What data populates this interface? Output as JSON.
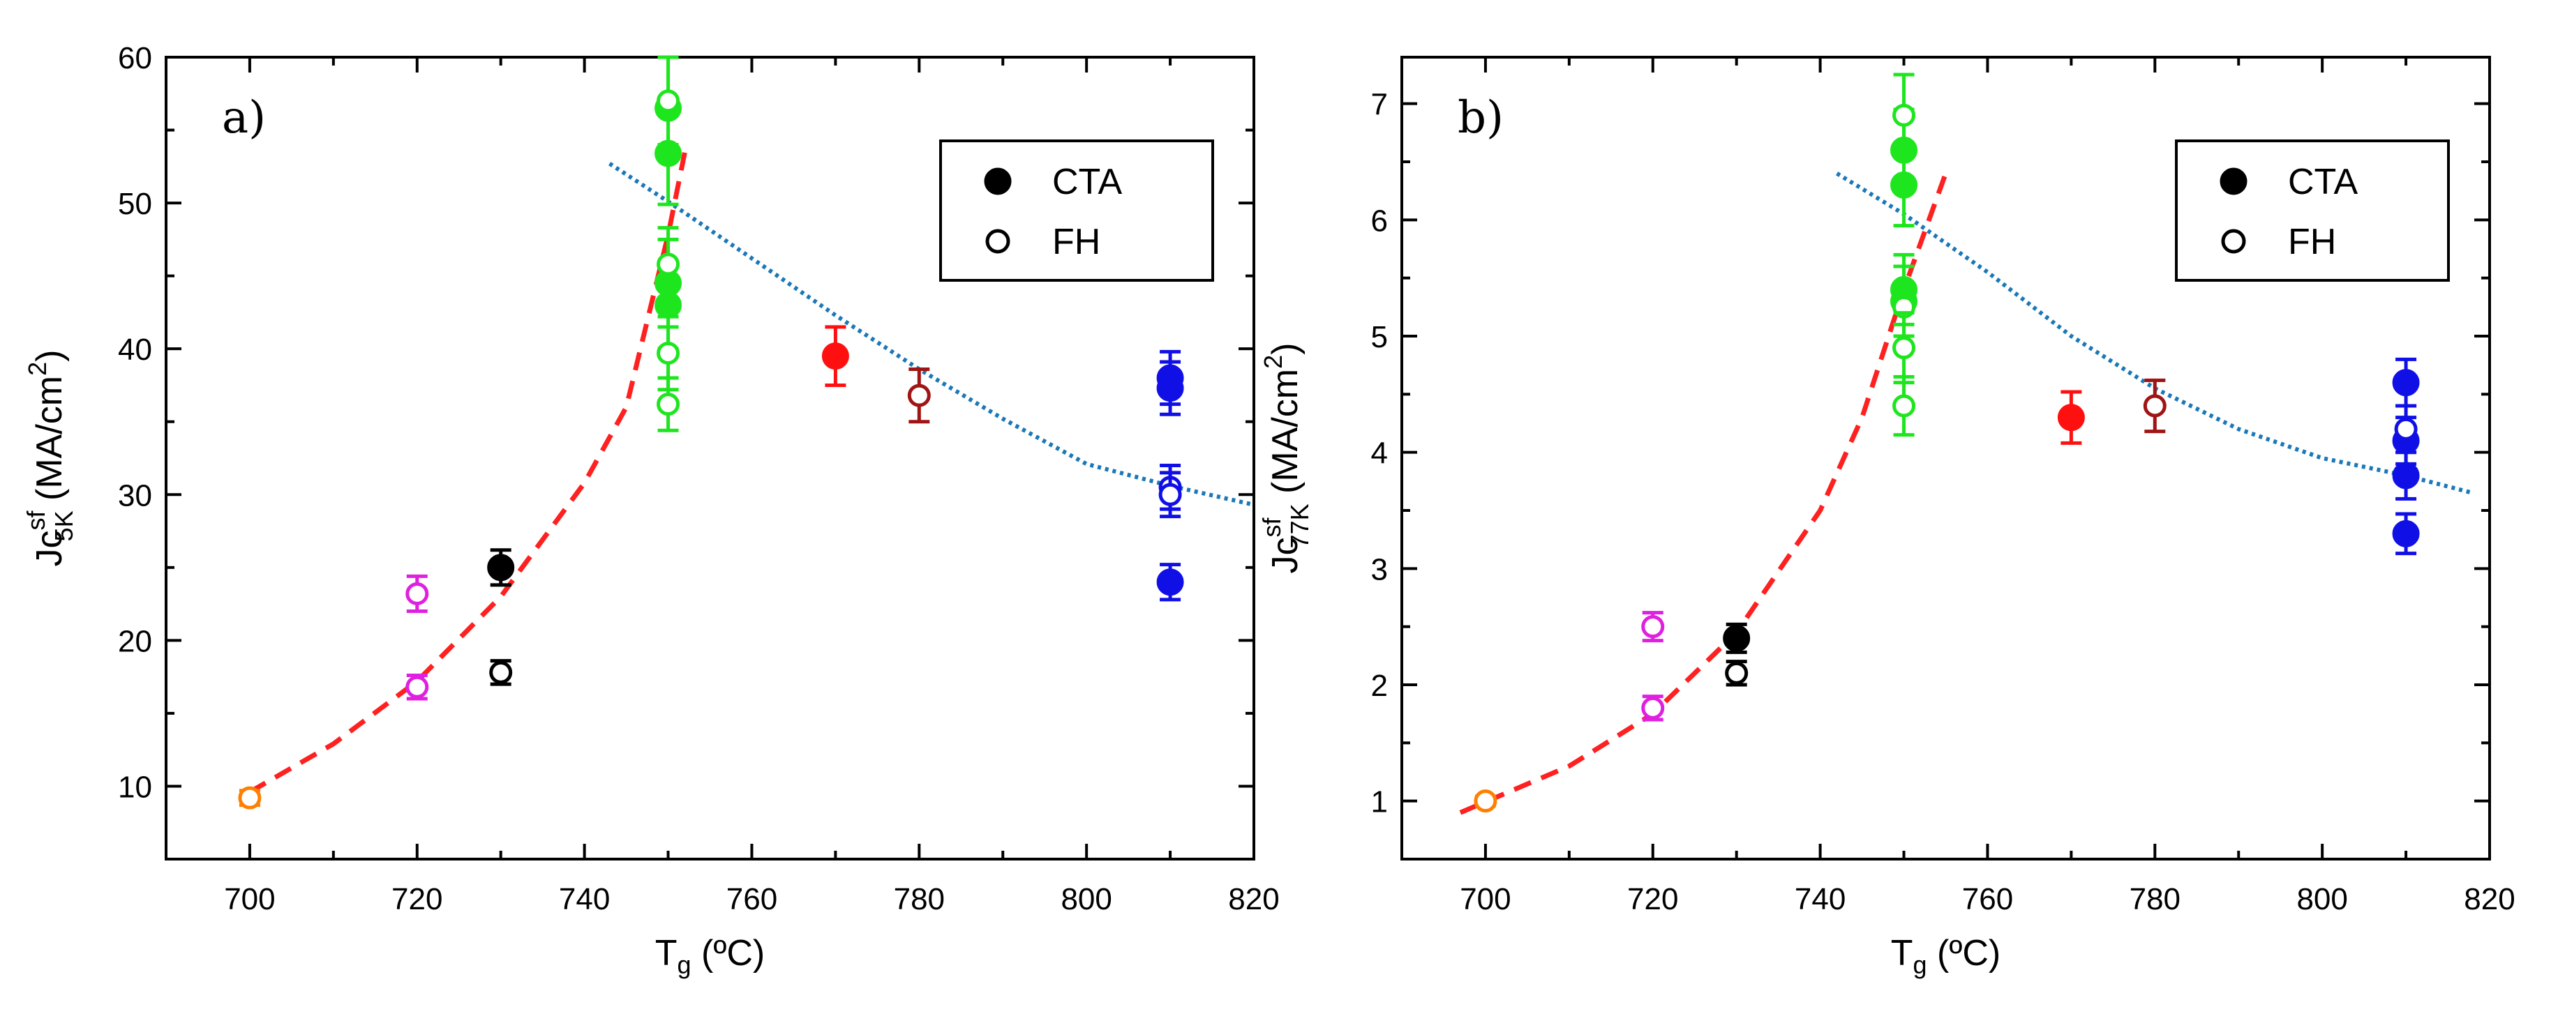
{
  "chart_data": [
    {
      "type": "scatter",
      "panel_label": "a)",
      "xlabel": {
        "main": "T",
        "sub": "g",
        "unit": " (ºC)"
      },
      "ylabel": {
        "main": "Jc",
        "sup": "sf",
        "sub": "5K",
        "unit_a": " (MA/cm",
        "unit_sup": "2",
        "unit_b": ")"
      },
      "xlim": [
        690,
        820
      ],
      "ylim": [
        5,
        60
      ],
      "xticks": [
        700,
        720,
        740,
        760,
        780,
        800,
        820
      ],
      "yticks": [
        10,
        20,
        30,
        40,
        50,
        60
      ],
      "legend": {
        "position": "top-right",
        "entries": [
          {
            "label": "CTA",
            "marker": "filled"
          },
          {
            "label": "FH",
            "marker": "open"
          }
        ]
      },
      "series": [
        {
          "name": "700-open",
          "color": "#ff8000",
          "filled": false,
          "x": 700,
          "points": [
            {
              "y": 9.2,
              "err": 0.5
            }
          ]
        },
        {
          "name": "720-open",
          "color": "#e020e0",
          "filled": false,
          "x": 720,
          "points": [
            {
              "y": 23.2,
              "err": 1.2
            },
            {
              "y": 16.8,
              "err": 0.8
            }
          ]
        },
        {
          "name": "730-filled",
          "color": "#000000",
          "filled": true,
          "x": 730,
          "points": [
            {
              "y": 25.0,
              "err": 1.2
            }
          ]
        },
        {
          "name": "730-open",
          "color": "#000000",
          "filled": false,
          "x": 730,
          "points": [
            {
              "y": 17.8,
              "err": 0.8
            }
          ]
        },
        {
          "name": "750-filled",
          "color": "#1ee61e",
          "filled": true,
          "x": 750,
          "points": [
            {
              "y": 56.5,
              "err": 3.5
            },
            {
              "y": 53.4,
              "err": 3.5
            },
            {
              "y": 44.5,
              "err": 3.0
            },
            {
              "y": 43.0,
              "err": 3.0
            }
          ]
        },
        {
          "name": "750-open",
          "color": "#1ee61e",
          "filled": false,
          "x": 750,
          "points": [
            {
              "y": 57.0,
              "err": 3.0
            },
            {
              "y": 45.8,
              "err": 2.5
            },
            {
              "y": 39.7,
              "err": 2.5
            },
            {
              "y": 36.2,
              "err": 1.8
            }
          ]
        },
        {
          "name": "770-filled",
          "color": "#ff1010",
          "filled": true,
          "x": 770,
          "points": [
            {
              "y": 39.5,
              "err": 2.0
            }
          ]
        },
        {
          "name": "780-open",
          "color": "#a01414",
          "filled": false,
          "x": 780,
          "points": [
            {
              "y": 36.8,
              "err": 1.8
            }
          ]
        },
        {
          "name": "810-filled",
          "color": "#1010e6",
          "filled": true,
          "x": 810,
          "points": [
            {
              "y": 38.0,
              "err": 1.8
            },
            {
              "y": 37.3,
              "err": 1.8
            },
            {
              "y": 24.0,
              "err": 1.2
            }
          ]
        },
        {
          "name": "810-open",
          "color": "#1010e6",
          "filled": false,
          "x": 810,
          "points": [
            {
              "y": 30.5,
              "err": 1.5
            },
            {
              "y": 30.0,
              "err": 1.5
            }
          ]
        }
      ],
      "fits": [
        {
          "name": "exponential-fit",
          "color": "#ff2020",
          "style": "dashed",
          "points": [
            [
              700,
              9.6
            ],
            [
              710,
              12.9
            ],
            [
              720,
              17.2
            ],
            [
              730,
              23.0
            ],
            [
              740,
              30.8
            ],
            [
              745,
              36.0
            ],
            [
              750,
              47.8
            ],
            [
              752,
              53.5
            ]
          ]
        },
        {
          "name": "decay-fit",
          "color": "#1a78b8",
          "style": "dotted",
          "points": [
            [
              743,
              52.7
            ],
            [
              750,
              50.1
            ],
            [
              760,
              46.2
            ],
            [
              770,
              42.3
            ],
            [
              780,
              38.6
            ],
            [
              790,
              35.2
            ],
            [
              800,
              32.1
            ],
            [
              810,
              30.6
            ],
            [
              820,
              29.3
            ]
          ]
        }
      ]
    },
    {
      "type": "scatter",
      "panel_label": "b)",
      "xlabel": {
        "main": "T",
        "sub": "g",
        "unit": " (ºC)"
      },
      "ylabel": {
        "main": "Jc",
        "sup": "sf",
        "sub": "77K",
        "unit_a": " (MA/cm",
        "unit_sup": "2",
        "unit_b": ")"
      },
      "xlim": [
        690,
        820
      ],
      "ylim": [
        0.5,
        7.4
      ],
      "xticks": [
        700,
        720,
        740,
        760,
        780,
        800,
        820
      ],
      "yticks": [
        1,
        2,
        3,
        4,
        5,
        6,
        7
      ],
      "legend": {
        "position": "top-right",
        "entries": [
          {
            "label": "CTA",
            "marker": "filled"
          },
          {
            "label": "FH",
            "marker": "open"
          }
        ]
      },
      "series": [
        {
          "name": "700-open",
          "color": "#ff8000",
          "filled": false,
          "x": 700,
          "points": [
            {
              "y": 1.0,
              "err": 0.04
            }
          ]
        },
        {
          "name": "720-open",
          "color": "#e020e0",
          "filled": false,
          "x": 720,
          "points": [
            {
              "y": 2.5,
              "err": 0.12
            },
            {
              "y": 1.8,
              "err": 0.1
            }
          ]
        },
        {
          "name": "730-filled",
          "color": "#000000",
          "filled": true,
          "x": 730,
          "points": [
            {
              "y": 2.4,
              "err": 0.12
            }
          ]
        },
        {
          "name": "730-open",
          "color": "#000000",
          "filled": false,
          "x": 730,
          "points": [
            {
              "y": 2.1,
              "err": 0.1
            }
          ]
        },
        {
          "name": "750-filled",
          "color": "#1ee61e",
          "filled": true,
          "x": 750,
          "points": [
            {
              "y": 6.6,
              "err": 0.35
            },
            {
              "y": 6.3,
              "err": 0.35
            },
            {
              "y": 5.4,
              "err": 0.3
            },
            {
              "y": 5.3,
              "err": 0.3
            }
          ]
        },
        {
          "name": "750-open",
          "color": "#1ee61e",
          "filled": false,
          "x": 750,
          "points": [
            {
              "y": 6.9,
              "err": 0.35
            },
            {
              "y": 5.25,
              "err": 0.35
            },
            {
              "y": 4.9,
              "err": 0.3
            },
            {
              "y": 4.4,
              "err": 0.25
            }
          ]
        },
        {
          "name": "770-filled",
          "color": "#ff1010",
          "filled": true,
          "x": 770,
          "points": [
            {
              "y": 4.3,
              "err": 0.22
            }
          ]
        },
        {
          "name": "780-open",
          "color": "#a01414",
          "filled": false,
          "x": 780,
          "points": [
            {
              "y": 4.4,
              "err": 0.22
            }
          ]
        },
        {
          "name": "810-filled",
          "color": "#1010e6",
          "filled": true,
          "x": 810,
          "points": [
            {
              "y": 4.6,
              "err": 0.2
            },
            {
              "y": 4.1,
              "err": 0.2
            },
            {
              "y": 3.8,
              "err": 0.2
            },
            {
              "y": 3.3,
              "err": 0.17
            }
          ]
        },
        {
          "name": "810-open",
          "color": "#1010e6",
          "filled": false,
          "x": 810,
          "points": [
            {
              "y": 4.2,
              "err": 0.2
            }
          ]
        }
      ],
      "fits": [
        {
          "name": "exponential-fit",
          "color": "#ff2020",
          "style": "dashed",
          "points": [
            [
              697,
              0.9
            ],
            [
              710,
              1.3
            ],
            [
              720,
              1.75
            ],
            [
              730,
              2.45
            ],
            [
              740,
              3.5
            ],
            [
              745,
              4.3
            ],
            [
              750,
              5.4
            ],
            [
              755,
              6.4
            ]
          ]
        },
        {
          "name": "decay-fit",
          "color": "#1a78b8",
          "style": "dotted",
          "points": [
            [
              742,
              6.4
            ],
            [
              750,
              6.05
            ],
            [
              760,
              5.55
            ],
            [
              770,
              5.0
            ],
            [
              780,
              4.55
            ],
            [
              790,
              4.2
            ],
            [
              800,
              3.95
            ],
            [
              810,
              3.8
            ],
            [
              818,
              3.65
            ]
          ]
        }
      ]
    }
  ]
}
